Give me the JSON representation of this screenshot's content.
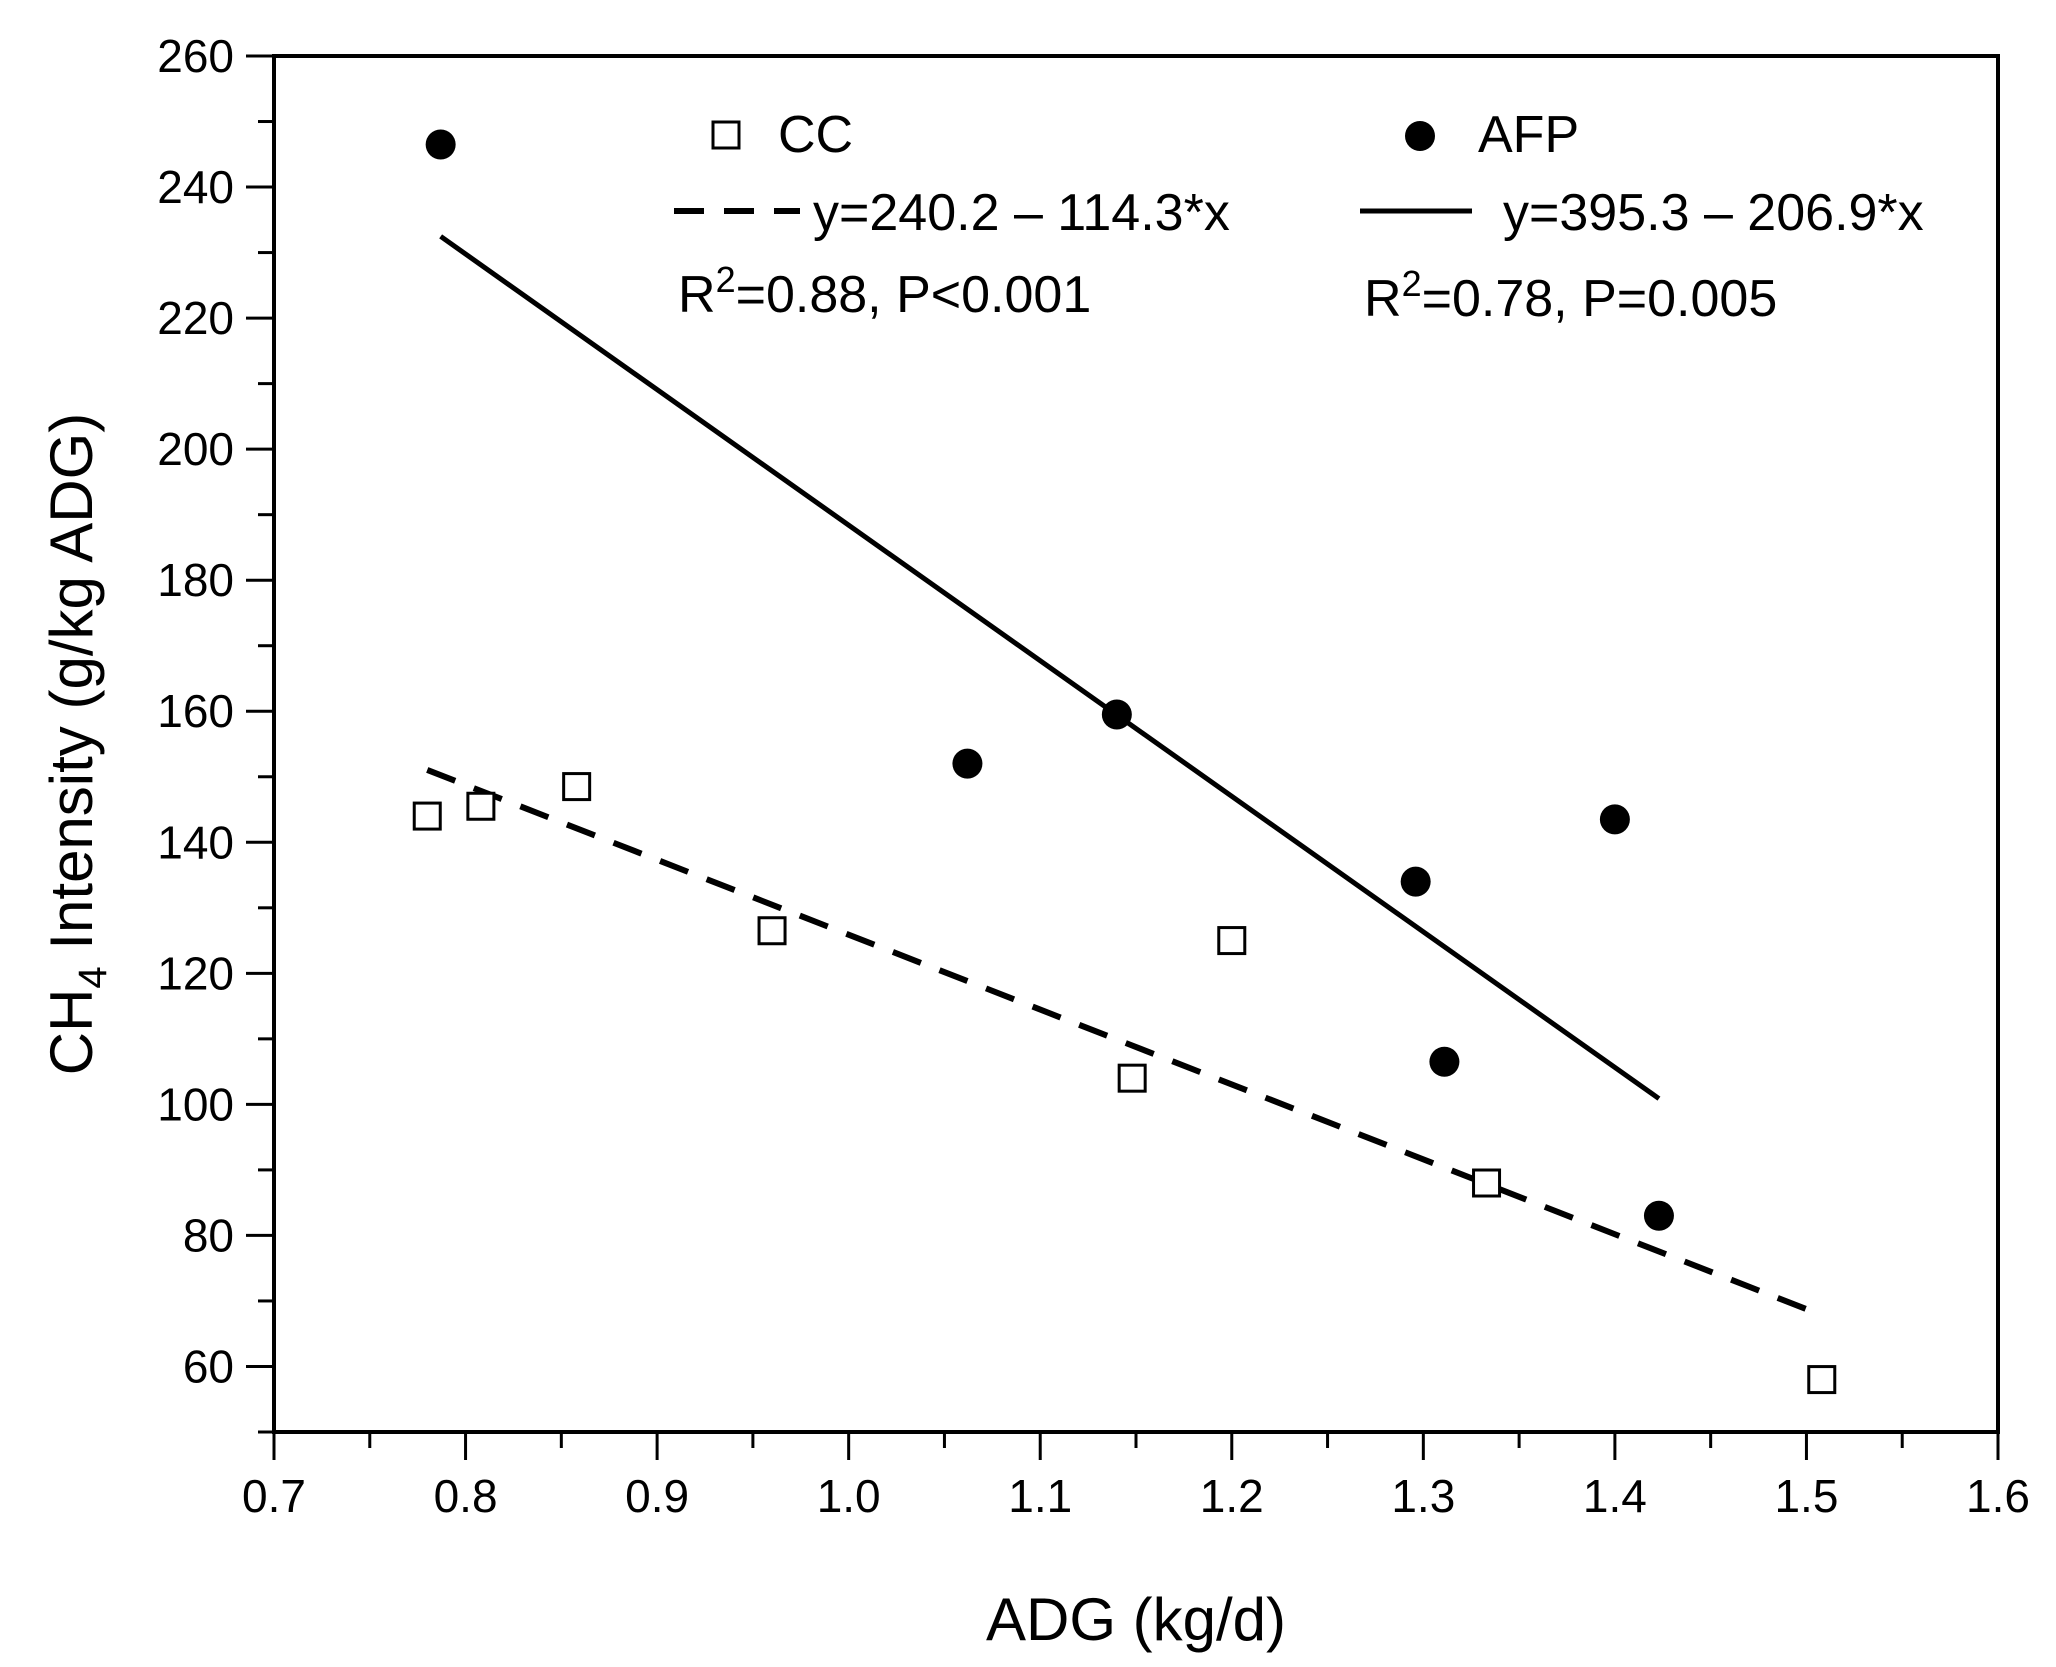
{
  "chart_data": {
    "type": "scatter",
    "xlabel": "ADG (kg/d)",
    "ylabel_prefix": "CH",
    "ylabel_subscript": "4",
    "ylabel_suffix": " Intensity (g/kg ADG)",
    "xlim": [
      0.7,
      1.6
    ],
    "ylim": [
      50,
      260
    ],
    "x_ticks": [
      0.7,
      0.8,
      0.9,
      1.0,
      1.1,
      1.2,
      1.3,
      1.4,
      1.5,
      1.6
    ],
    "x_tick_labels": [
      "0.7",
      "0.8",
      "0.9",
      "1.0",
      "1.1",
      "1.2",
      "1.3",
      "1.4",
      "1.5",
      "1.6"
    ],
    "y_ticks": [
      60,
      80,
      100,
      120,
      140,
      160,
      180,
      200,
      220,
      240,
      260
    ],
    "y_tick_labels": [
      "60",
      "80",
      "100",
      "120",
      "140",
      "160",
      "180",
      "200",
      "220",
      "240",
      "260"
    ],
    "series": [
      {
        "name": "CC",
        "marker": "open-square",
        "points": [
          {
            "x": 0.78,
            "y": 144
          },
          {
            "x": 0.808,
            "y": 145.5
          },
          {
            "x": 0.858,
            "y": 148.5
          },
          {
            "x": 0.96,
            "y": 126.5
          },
          {
            "x": 1.148,
            "y": 104
          },
          {
            "x": 1.2,
            "y": 125
          },
          {
            "x": 1.333,
            "y": 88
          },
          {
            "x": 1.508,
            "y": 58
          }
        ],
        "fit": {
          "style": "dashed",
          "intercept": 240.2,
          "slope": -114.3,
          "x_range": [
            0.78,
            1.508
          ],
          "equation": "y=240.2 – 114.3*x",
          "r2_prefix": "R",
          "r2_sup": "2",
          "r2_suffix": "=0.88, P<0.001"
        }
      },
      {
        "name": "AFP",
        "marker": "filled-circle",
        "points": [
          {
            "x": 0.787,
            "y": 246.5
          },
          {
            "x": 1.062,
            "y": 152
          },
          {
            "x": 1.14,
            "y": 159.5
          },
          {
            "x": 1.296,
            "y": 134
          },
          {
            "x": 1.311,
            "y": 106.5
          },
          {
            "x": 1.4,
            "y": 143.5
          },
          {
            "x": 1.423,
            "y": 83
          }
        ],
        "fit": {
          "style": "solid",
          "intercept": 395.3,
          "slope": -206.9,
          "x_range": [
            0.787,
            1.423
          ],
          "equation": "y=395.3 – 206.9*x",
          "r2_prefix": "R",
          "r2_sup": "2",
          "r2_suffix": "=0.78, P=0.005"
        }
      }
    ]
  }
}
